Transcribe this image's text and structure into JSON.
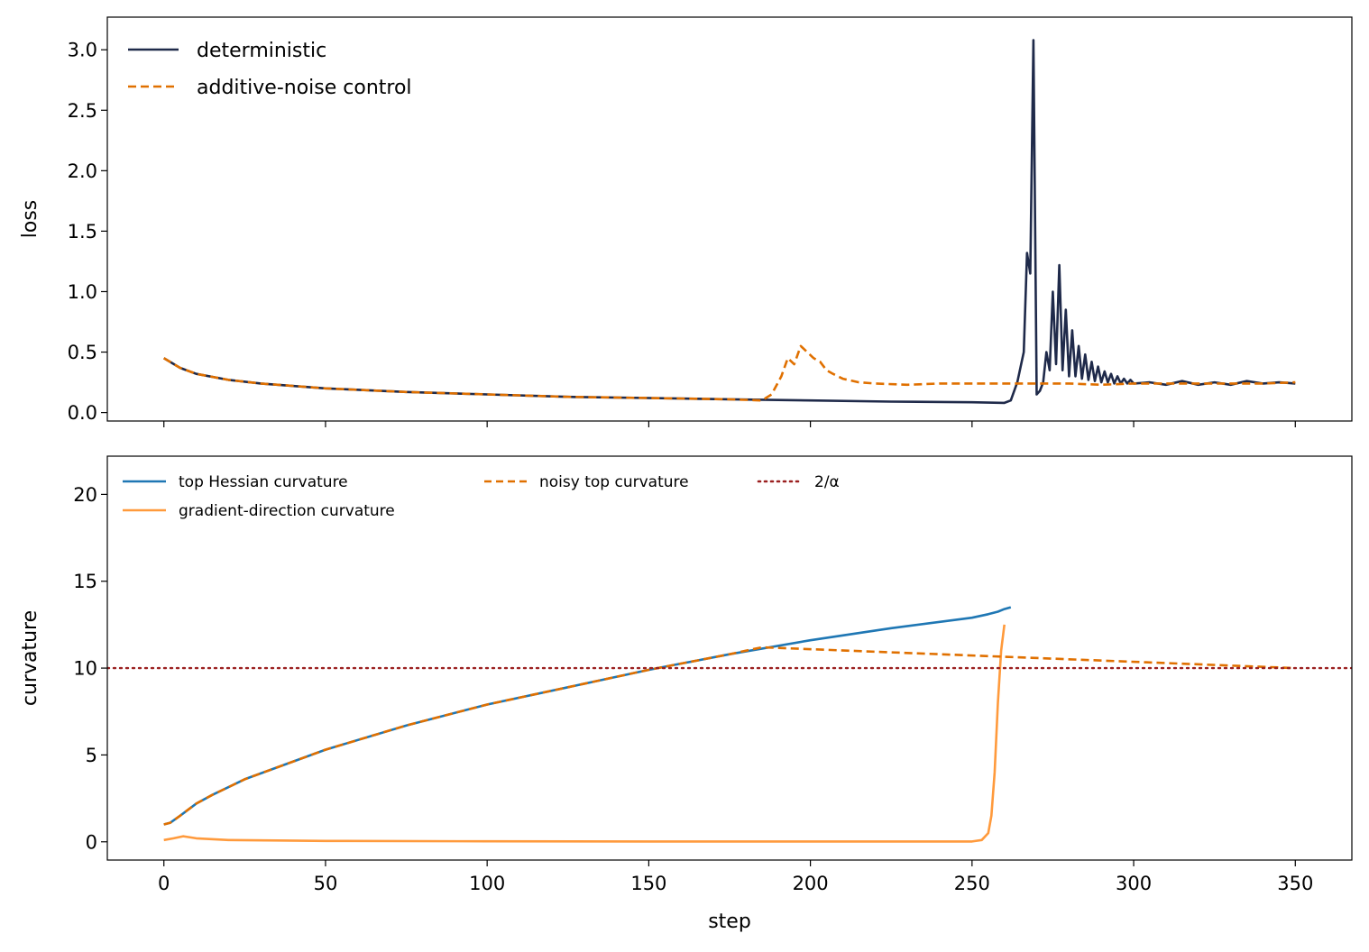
{
  "chart_data": [
    {
      "type": "line",
      "ylabel": "loss",
      "xlim": [
        -17.5,
        367.5
      ],
      "ylim": [
        -0.07,
        3.27
      ],
      "yticks": [
        0.0,
        0.5,
        1.0,
        1.5,
        2.0,
        2.5,
        3.0
      ],
      "ytick_labels": [
        "0.0",
        "0.5",
        "1.0",
        "1.5",
        "2.0",
        "2.5",
        "3.0"
      ],
      "xticks": [
        0,
        50,
        100,
        150,
        200,
        250,
        300,
        350
      ],
      "legend_position": "upper-left",
      "legend": [
        "deterministic",
        "additive-noise control"
      ],
      "series": [
        {
          "name": "deterministic",
          "color": "#1f2a4a",
          "style": "solid",
          "x": [
            0,
            5,
            10,
            20,
            30,
            50,
            75,
            100,
            125,
            150,
            175,
            200,
            225,
            250,
            260,
            262,
            264,
            266,
            267,
            268,
            269,
            270,
            271,
            272,
            273,
            274,
            275,
            276,
            277,
            278,
            279,
            280,
            281,
            282,
            283,
            284,
            285,
            286,
            287,
            288,
            289,
            290,
            291,
            292,
            293,
            294,
            295,
            296,
            297,
            298,
            299,
            300,
            305,
            310,
            315,
            320,
            325,
            330,
            335,
            340,
            345,
            350
          ],
          "y": [
            0.45,
            0.37,
            0.32,
            0.27,
            0.24,
            0.2,
            0.17,
            0.15,
            0.13,
            0.12,
            0.11,
            0.1,
            0.09,
            0.085,
            0.08,
            0.1,
            0.25,
            0.5,
            1.32,
            1.15,
            3.08,
            0.15,
            0.18,
            0.25,
            0.5,
            0.35,
            1.0,
            0.4,
            1.22,
            0.35,
            0.85,
            0.3,
            0.68,
            0.3,
            0.55,
            0.28,
            0.48,
            0.27,
            0.42,
            0.26,
            0.38,
            0.25,
            0.34,
            0.25,
            0.32,
            0.24,
            0.3,
            0.24,
            0.28,
            0.24,
            0.27,
            0.24,
            0.25,
            0.23,
            0.26,
            0.23,
            0.25,
            0.23,
            0.26,
            0.24,
            0.25,
            0.24
          ]
        },
        {
          "name": "additive-noise control",
          "color": "#e07000",
          "style": "dashed",
          "x": [
            0,
            5,
            10,
            20,
            30,
            50,
            75,
            100,
            125,
            150,
            175,
            185,
            188,
            191,
            193,
            195,
            197,
            199,
            201,
            203,
            205,
            207,
            210,
            215,
            220,
            230,
            240,
            250,
            260,
            270,
            280,
            290,
            300,
            310,
            320,
            330,
            340,
            350
          ],
          "y": [
            0.45,
            0.37,
            0.32,
            0.27,
            0.24,
            0.2,
            0.17,
            0.15,
            0.13,
            0.12,
            0.11,
            0.1,
            0.15,
            0.3,
            0.45,
            0.4,
            0.55,
            0.5,
            0.45,
            0.42,
            0.35,
            0.32,
            0.28,
            0.25,
            0.24,
            0.23,
            0.24,
            0.24,
            0.24,
            0.24,
            0.24,
            0.23,
            0.24,
            0.24,
            0.24,
            0.24,
            0.24,
            0.25
          ]
        }
      ]
    },
    {
      "type": "line",
      "ylabel": "curvature",
      "xlabel": "step",
      "xlim": [
        -17.5,
        367.5
      ],
      "ylim": [
        -1.05,
        22.2
      ],
      "yticks": [
        0,
        5,
        10,
        15,
        20
      ],
      "ytick_labels": [
        "0",
        "5",
        "10",
        "15",
        "20"
      ],
      "xticks": [
        0,
        50,
        100,
        150,
        200,
        250,
        300,
        350
      ],
      "xtick_labels": [
        "0",
        "50",
        "100",
        "150",
        "200",
        "250",
        "300",
        "350"
      ],
      "legend_position": "upper-left, 3 columns",
      "legend": [
        "top Hessian curvature",
        "gradient-direction curvature",
        "noisy top curvature",
        "2/α"
      ],
      "hline": {
        "name": "2/α",
        "y": 10,
        "color": "#9b2020",
        "style": "dotted"
      },
      "series": [
        {
          "name": "top Hessian curvature",
          "color": "#1f77b4",
          "style": "solid",
          "x": [
            0,
            2,
            5,
            10,
            15,
            25,
            50,
            75,
            100,
            125,
            150,
            175,
            200,
            225,
            250,
            255,
            258,
            260,
            262
          ],
          "y": [
            1.0,
            1.1,
            1.5,
            2.2,
            2.7,
            3.6,
            5.3,
            6.7,
            7.9,
            8.9,
            9.9,
            10.8,
            11.6,
            12.3,
            12.9,
            13.1,
            13.25,
            13.4,
            13.5
          ]
        },
        {
          "name": "gradient-direction curvature",
          "color": "#ff9a3c",
          "style": "solid",
          "x": [
            0,
            3,
            6,
            10,
            20,
            50,
            100,
            150,
            200,
            250,
            253,
            255,
            256,
            257,
            258,
            259,
            260
          ],
          "y": [
            0.1,
            0.2,
            0.32,
            0.2,
            0.1,
            0.05,
            0.03,
            0.02,
            0.02,
            0.02,
            0.1,
            0.5,
            1.5,
            4.0,
            8.0,
            11.0,
            12.5
          ]
        },
        {
          "name": "noisy top curvature",
          "color": "#e07000",
          "style": "dashed",
          "x": [
            0,
            2,
            5,
            10,
            15,
            25,
            50,
            75,
            100,
            125,
            150,
            175,
            180,
            185,
            350
          ],
          "y": [
            1.0,
            1.1,
            1.5,
            2.2,
            2.7,
            3.6,
            5.3,
            6.7,
            7.9,
            8.9,
            9.9,
            10.8,
            11.0,
            11.2,
            10.0
          ]
        }
      ]
    }
  ]
}
